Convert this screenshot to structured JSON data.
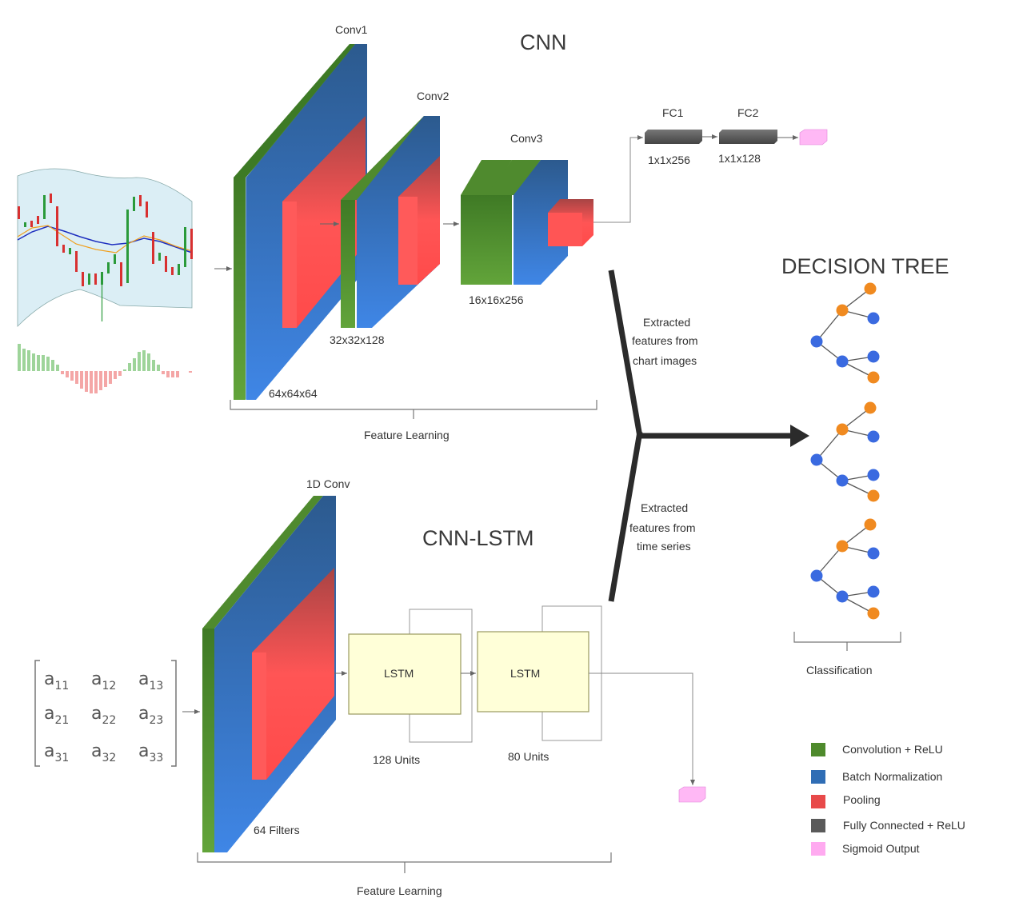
{
  "cnn": {
    "title": "CNN",
    "conv1": "Conv1",
    "conv2": "Conv2",
    "conv3": "Conv3",
    "fc1": "FC1",
    "fc2": "FC2",
    "fc1_dim": "1x1x256",
    "fc2_dim": "1x1x128",
    "dim1": "64x64x64",
    "dim2": "32x32x128",
    "dim3": "16x16x256",
    "feature_learning": "Feature Learning"
  },
  "cnn_lstm": {
    "title": "CNN-LSTM",
    "conv1d": "1D Conv",
    "filters": "64 Filters",
    "lstm1": "LSTM",
    "lstm2": "LSTM",
    "units1": "128 Units",
    "units2": "80 Units",
    "feature_learning": "Feature Learning"
  },
  "matrix": [
    [
      "a",
      "11",
      "a",
      "12",
      "a",
      "13"
    ],
    [
      "a",
      "21",
      "a",
      "22",
      "a",
      "23"
    ],
    [
      "a",
      "31",
      "a",
      "32",
      "a",
      "33"
    ]
  ],
  "annotations": {
    "chart_features": [
      "Extracted",
      "features from",
      "chart images"
    ],
    "series_features": [
      "Extracted",
      "features from",
      "time series"
    ]
  },
  "decision_tree": {
    "title": "DECISION TREE",
    "classification": "Classification"
  },
  "legend": [
    {
      "label": "Convolution + ReLU",
      "color": "#4e8a2c"
    },
    {
      "label": "Batch Normalization",
      "color": "#2f6db5"
    },
    {
      "label": "Pooling",
      "color": "#e84a4a"
    },
    {
      "label": "Fully Connected + ReLU",
      "color": "#5a5a5a"
    },
    {
      "label": "Sigmoid Output",
      "color": "#ffaaf0"
    }
  ]
}
